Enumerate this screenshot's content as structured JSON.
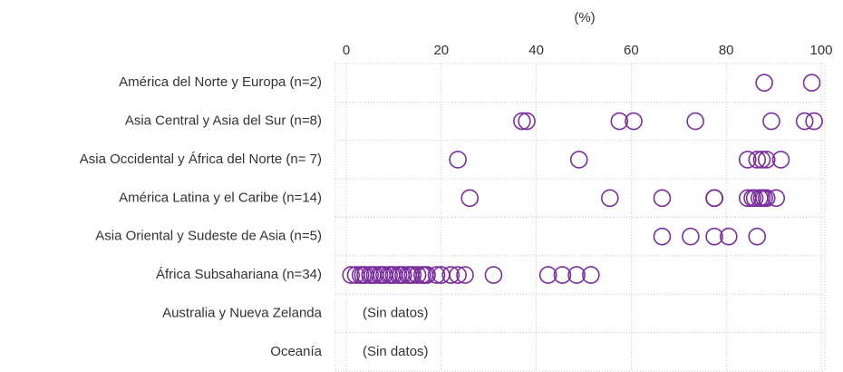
{
  "chart_data": {
    "type": "strip",
    "x_label": "(%)",
    "categories": [
      "América del Norte y Europa (n=2)",
      "Asia Central y Asia del Sur  (n=8)",
      "Asia Occidental y África del Norte (n= 7)",
      "América Latina y el Caribe (n=14)",
      "Asia Oriental y Sudeste de Asia (n=5)",
      "África Subsahariana (n=34)",
      "Australia y Nueva Zelanda",
      "Oceanía"
    ],
    "values": [
      [
        88,
        98
      ],
      [
        37,
        38,
        57.5,
        60.5,
        73.5,
        89.5,
        96.5,
        98.5
      ],
      [
        23.5,
        49,
        84.5,
        86.5,
        87.5,
        88.5,
        91.5
      ],
      [
        26,
        55.5,
        66.5,
        77.5,
        77.5,
        77.5,
        84.5,
        85.5,
        86,
        87,
        87.5,
        88,
        88.5,
        90.5
      ],
      [
        66.5,
        72.5,
        77.5,
        80.5,
        86.5
      ],
      [
        1,
        2,
        3,
        3.5,
        4,
        5,
        5.5,
        6,
        7,
        7.5,
        8,
        9,
        9.5,
        10,
        11,
        11.5,
        12,
        13,
        13.5,
        14,
        15,
        16,
        16.5,
        17,
        19,
        20,
        22,
        23.5,
        25,
        31,
        42.5,
        45.5,
        48.5,
        51.5
      ],
      [],
      []
    ],
    "notes": [
      null,
      null,
      null,
      null,
      null,
      null,
      "(Sin datos)",
      "(Sin datos)"
    ],
    "color": "#7b2f9e",
    "xlim": [
      0,
      100
    ],
    "xticks": [
      0,
      20,
      40,
      60,
      80,
      100
    ],
    "grid": true
  }
}
